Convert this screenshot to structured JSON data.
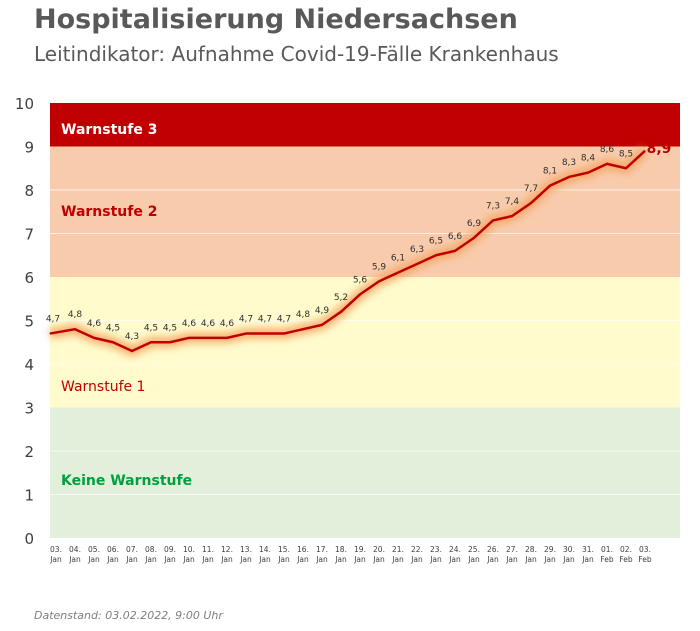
{
  "header": {
    "title": "Hospitalisierung Niedersachsen",
    "subtitle": "Leitindikator: Aufnahme Covid-19-Fälle Krankenhaus"
  },
  "footer": {
    "text": "Datenstand: 03.02.2022, 9:00 Uhr"
  },
  "chart_data": {
    "type": "line",
    "title": "Hospitalisierung Niedersachsen",
    "xlabel": "",
    "ylabel": "",
    "ylim": [
      0,
      10
    ],
    "yticks": [
      "0",
      "1",
      "2",
      "3",
      "4",
      "5",
      "6",
      "7",
      "8",
      "9",
      "10"
    ],
    "categories": [
      [
        "03.",
        "Jan"
      ],
      [
        "04.",
        "Jan"
      ],
      [
        "05.",
        "Jan"
      ],
      [
        "06.",
        "Jan"
      ],
      [
        "07.",
        "Jan"
      ],
      [
        "08.",
        "Jan"
      ],
      [
        "09.",
        "Jan"
      ],
      [
        "10.",
        "Jan"
      ],
      [
        "11.",
        "Jan"
      ],
      [
        "12.",
        "Jan"
      ],
      [
        "13.",
        "Jan"
      ],
      [
        "14.",
        "Jan"
      ],
      [
        "15.",
        "Jan"
      ],
      [
        "16.",
        "Jan"
      ],
      [
        "17.",
        "Jan"
      ],
      [
        "18.",
        "Jan"
      ],
      [
        "19.",
        "Jan"
      ],
      [
        "20.",
        "Jan"
      ],
      [
        "21.",
        "Jan"
      ],
      [
        "22.",
        "Jan"
      ],
      [
        "23.",
        "Jan"
      ],
      [
        "24.",
        "Jan"
      ],
      [
        "25.",
        "Jan"
      ],
      [
        "26.",
        "Jan"
      ],
      [
        "27.",
        "Jan"
      ],
      [
        "28.",
        "Jan"
      ],
      [
        "29.",
        "Jan"
      ],
      [
        "30.",
        "Jan"
      ],
      [
        "31.",
        "Jan"
      ],
      [
        "01.",
        "Feb"
      ],
      [
        "02.",
        "Feb"
      ],
      [
        "03.",
        "Feb"
      ]
    ],
    "values": [
      4.7,
      4.8,
      4.6,
      4.5,
      4.3,
      4.5,
      4.5,
      4.6,
      4.6,
      4.6,
      4.7,
      4.7,
      4.7,
      4.8,
      4.9,
      5.2,
      5.6,
      5.9,
      6.1,
      6.3,
      6.5,
      6.6,
      6.9,
      7.3,
      7.4,
      7.7,
      8.1,
      8.3,
      8.4,
      8.6,
      8.5,
      8.9
    ],
    "labels": [
      "4,7",
      "4,8",
      "4,6",
      "4,5",
      "4,3",
      "4,5",
      "4,5",
      "4,6",
      "4,6",
      "4,6",
      "4,7",
      "4,7",
      "4,7",
      "4,8",
      "4,9",
      "5,2",
      "5,6",
      "5,9",
      "6,1",
      "6,3",
      "6,5",
      "6,6",
      "6,9",
      "7,3",
      "7,4",
      "7,7",
      "8,1",
      "8,3",
      "8,4",
      "8,6",
      "8,5",
      "8,9"
    ],
    "bands": [
      {
        "name": "Keine Warnstufe",
        "from": 0,
        "to": 3,
        "color": "#e2efda",
        "text_color": "#00a040"
      },
      {
        "name": "Warnstufe 1",
        "from": 3,
        "to": 6,
        "color": "#fffbcc",
        "text_color": "#c00000"
      },
      {
        "name": "Warnstufe 2",
        "from": 6,
        "to": 9,
        "color": "#f8cbad",
        "text_color": "#c00000"
      },
      {
        "name": "Warnstufe 3",
        "from": 9,
        "to": 10,
        "color": "#c00000",
        "text_color": "#ffffff"
      }
    ],
    "line_color": "#c00000",
    "grid": true
  }
}
